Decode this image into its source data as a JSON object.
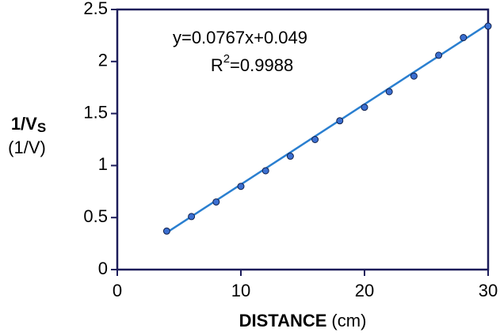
{
  "chart_data": {
    "type": "scatter",
    "equation": "y=0.0767x+0.049",
    "r_squared": {
      "base": "R",
      "sup": "2",
      "rest": "=0.9988"
    },
    "y_label": {
      "main": "1/V",
      "sub": "S"
    },
    "y_unit": "(1/V)",
    "x_label": {
      "main": "DISTANCE",
      "unit": "(cm)"
    },
    "x": [
      4,
      6,
      8,
      10,
      12,
      14,
      16,
      18,
      20,
      22,
      24,
      26,
      28,
      30
    ],
    "values": [
      0.37,
      0.51,
      0.65,
      0.8,
      0.95,
      1.09,
      1.25,
      1.43,
      1.56,
      1.71,
      1.86,
      2.06,
      2.23,
      2.34
    ],
    "color": "#3b6fd1",
    "fit_line": {
      "x": [
        4,
        30
      ],
      "values": [
        0.356,
        2.36
      ],
      "color": "#2a7fd0"
    },
    "xlim": [
      0,
      30
    ],
    "ylim": [
      0,
      2.5
    ],
    "xticks": [
      0,
      10,
      20,
      30
    ],
    "yticks": [
      0,
      0.5,
      1,
      1.5,
      2,
      2.5
    ],
    "frame_color": "#1c1c5a"
  }
}
